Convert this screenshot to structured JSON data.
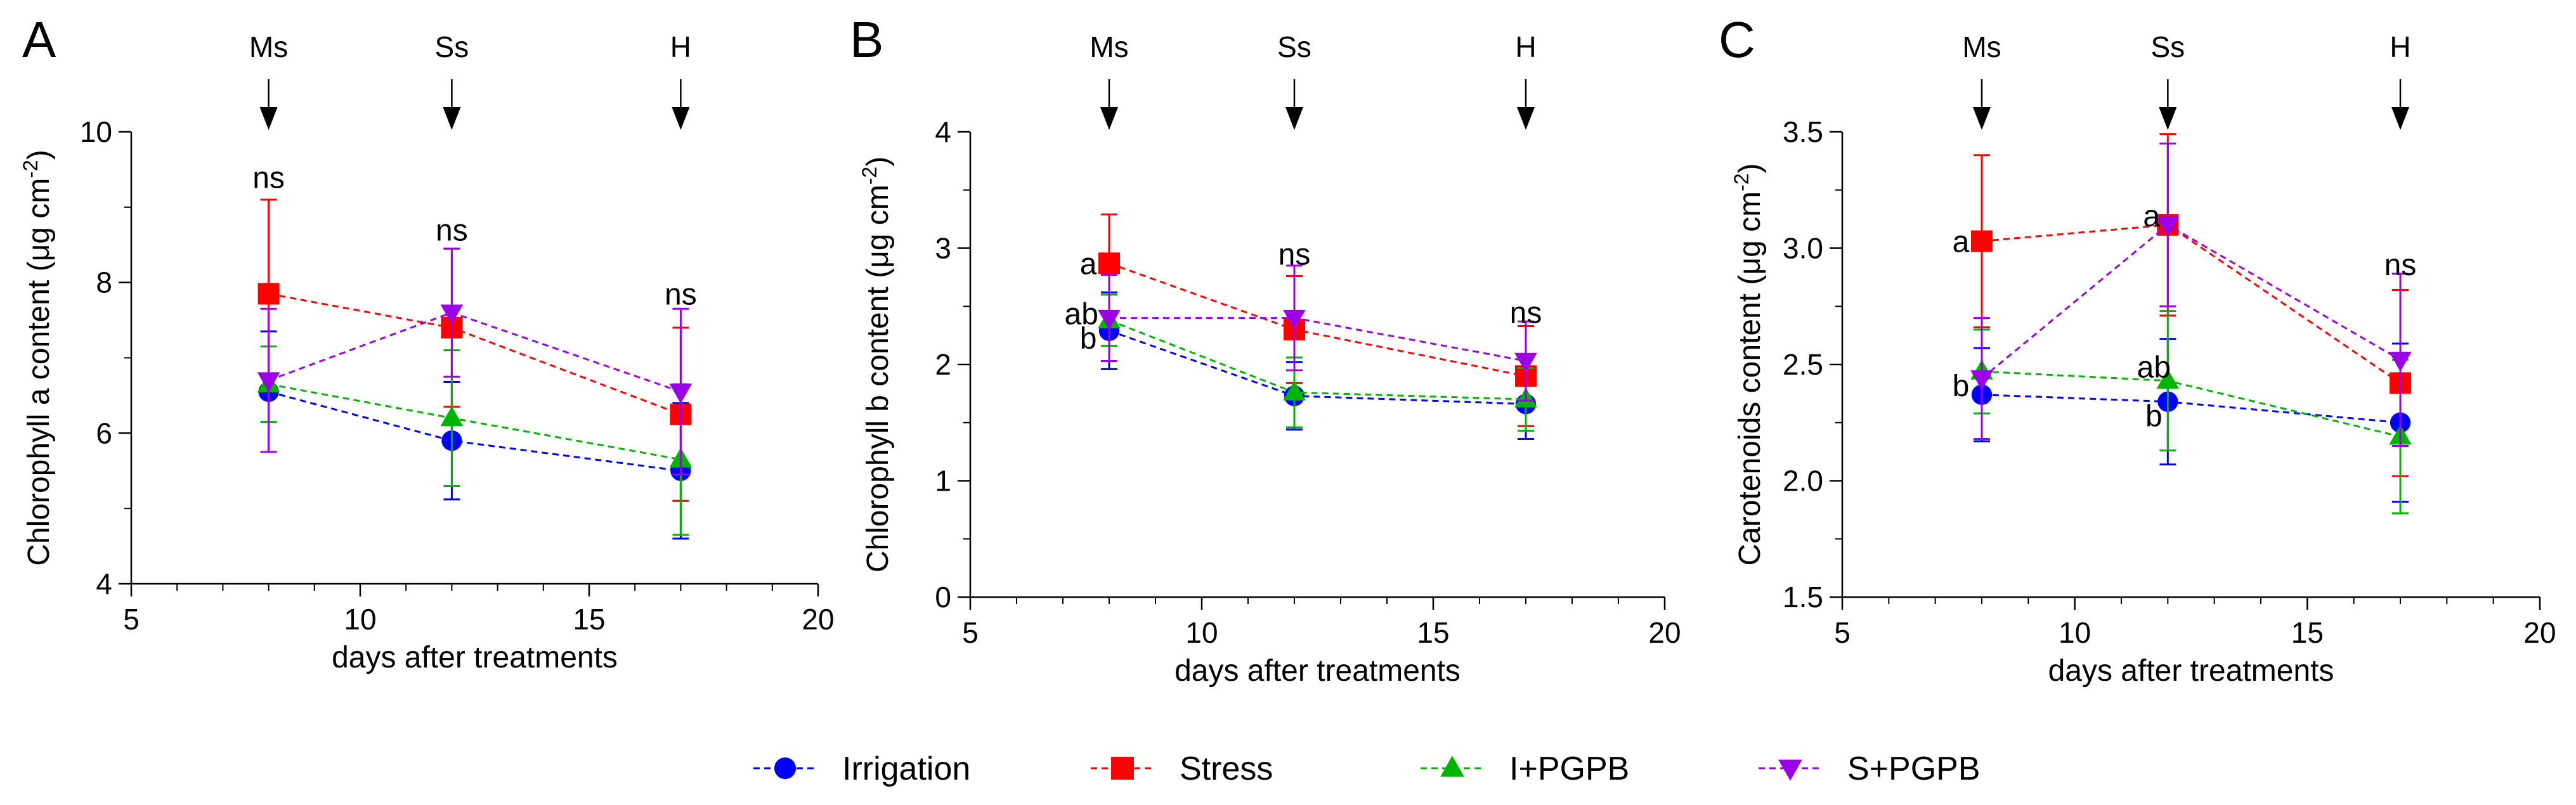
{
  "chart_data": [
    {
      "panel": "A",
      "type": "line",
      "xlabel": "days after treatments",
      "ylabel": "Chlorophyll a content (μg cm",
      "ylabel_sup": "-2",
      "ylabel_close": ")",
      "xlim": [
        5,
        20
      ],
      "ylim": [
        4,
        10
      ],
      "xticks": [
        5,
        10,
        15,
        20
      ],
      "yticks": [
        4,
        6,
        8,
        10
      ],
      "x": [
        8,
        12,
        17
      ],
      "series": [
        {
          "name": "Irrigation",
          "values": [
            6.55,
            5.9,
            5.5
          ],
          "errors": [
            0.8,
            0.78,
            0.9
          ]
        },
        {
          "name": "Stress",
          "values": [
            7.85,
            7.4,
            6.25
          ],
          "errors": [
            1.25,
            1.05,
            1.15
          ]
        },
        {
          "name": "I+PGPB",
          "values": [
            6.65,
            6.2,
            5.65
          ],
          "errors": [
            0.5,
            0.9,
            1.0
          ]
        },
        {
          "name": "S+PGPB",
          "values": [
            6.7,
            7.6,
            6.55
          ],
          "errors": [
            0.95,
            0.85,
            1.1
          ]
        }
      ],
      "arrows": [
        {
          "x": 8,
          "label": "Ms"
        },
        {
          "x": 12,
          "label": "Ss"
        },
        {
          "x": 17,
          "label": "H"
        }
      ],
      "annotations": [
        {
          "x": 8,
          "y": 9.4,
          "text": "ns"
        },
        {
          "x": 12,
          "y": 8.7,
          "text": "ns"
        },
        {
          "x": 17,
          "y": 7.85,
          "text": "ns"
        }
      ]
    },
    {
      "panel": "B",
      "type": "line",
      "xlabel": "days after treatments",
      "ylabel": "Chlorophyll b content (μg cm",
      "ylabel_sup": "-2",
      "ylabel_close": ")",
      "xlim": [
        5,
        20
      ],
      "ylim": [
        0,
        4
      ],
      "xticks": [
        5,
        10,
        15,
        20
      ],
      "yticks": [
        0,
        1,
        2,
        3,
        4
      ],
      "x": [
        8,
        12,
        17
      ],
      "series": [
        {
          "name": "Irrigation",
          "values": [
            2.29,
            1.73,
            1.66
          ],
          "errors": [
            0.33,
            0.29,
            0.3
          ]
        },
        {
          "name": "Stress",
          "values": [
            2.87,
            2.3,
            1.9
          ],
          "errors": [
            0.42,
            0.46,
            0.43
          ]
        },
        {
          "name": "I+PGPB",
          "values": [
            2.38,
            1.76,
            1.7
          ],
          "errors": [
            0.22,
            0.3,
            0.27
          ]
        },
        {
          "name": "S+PGPB",
          "values": [
            2.4,
            2.4,
            2.03
          ],
          "errors": [
            0.37,
            0.45,
            0.34
          ]
        }
      ],
      "arrows": [
        {
          "x": 8,
          "label": "Ms"
        },
        {
          "x": 12,
          "label": "Ss"
        },
        {
          "x": 17,
          "label": "H"
        }
      ],
      "annotations": [
        {
          "x": 12,
          "y": 2.95,
          "text": "ns"
        },
        {
          "x": 17,
          "y": 2.45,
          "text": "ns"
        },
        {
          "x": 7.55,
          "y": 2.87,
          "text": "a"
        },
        {
          "x": 7.4,
          "y": 2.44,
          "text": "ab"
        },
        {
          "x": 7.55,
          "y": 2.23,
          "text": "b"
        }
      ]
    },
    {
      "panel": "C",
      "type": "line",
      "xlabel": "days after treatments",
      "ylabel": "Carotenoids content (μg cm",
      "ylabel_sup": "-2",
      "ylabel_close": ")",
      "xlim": [
        5,
        20
      ],
      "ylim": [
        1.5,
        3.5
      ],
      "xticks": [
        5,
        10,
        15,
        20
      ],
      "yticks": [
        1.5,
        2.0,
        2.5,
        3.0,
        3.5
      ],
      "x": [
        8,
        12,
        17
      ],
      "series": [
        {
          "name": "Irrigation",
          "values": [
            2.37,
            2.34,
            2.25
          ],
          "errors": [
            0.2,
            0.27,
            0.34
          ]
        },
        {
          "name": "Stress",
          "values": [
            3.03,
            3.1,
            2.42
          ],
          "errors": [
            0.37,
            0.39,
            0.4
          ]
        },
        {
          "name": "I+PGPB",
          "values": [
            2.47,
            2.43,
            2.19
          ],
          "errors": [
            0.18,
            0.3,
            0.33
          ]
        },
        {
          "name": "S+PGPB",
          "values": [
            2.44,
            3.1,
            2.52
          ],
          "errors": [
            0.26,
            0.35,
            0.37
          ]
        }
      ],
      "arrows": [
        {
          "x": 8,
          "label": "Ms"
        },
        {
          "x": 12,
          "label": "Ss"
        },
        {
          "x": 17,
          "label": "H"
        }
      ],
      "annotations": [
        {
          "x": 17,
          "y": 2.93,
          "text": "ns"
        },
        {
          "x": 7.55,
          "y": 3.03,
          "text": "a"
        },
        {
          "x": 11.65,
          "y": 3.14,
          "text": "a"
        },
        {
          "x": 7.55,
          "y": 2.41,
          "text": "b"
        },
        {
          "x": 11.7,
          "y": 2.49,
          "text": "ab"
        },
        {
          "x": 11.7,
          "y": 2.28,
          "text": "b"
        }
      ]
    }
  ],
  "legend": [
    {
      "name": "Irrigation",
      "color": "#0000ff",
      "marker": "circle"
    },
    {
      "name": "Stress",
      "color": "#ff0000",
      "marker": "square"
    },
    {
      "name": "I+PGPB",
      "color": "#00b400",
      "marker": "triangle-up"
    },
    {
      "name": "S+PGPB",
      "color": "#9b00e6",
      "marker": "triangle-down"
    }
  ],
  "colors": {
    "Irrigation": "#0000ff",
    "Stress": "#ff0000",
    "I+PGPB": "#00b400",
    "S+PGPB": "#9b00e6"
  }
}
